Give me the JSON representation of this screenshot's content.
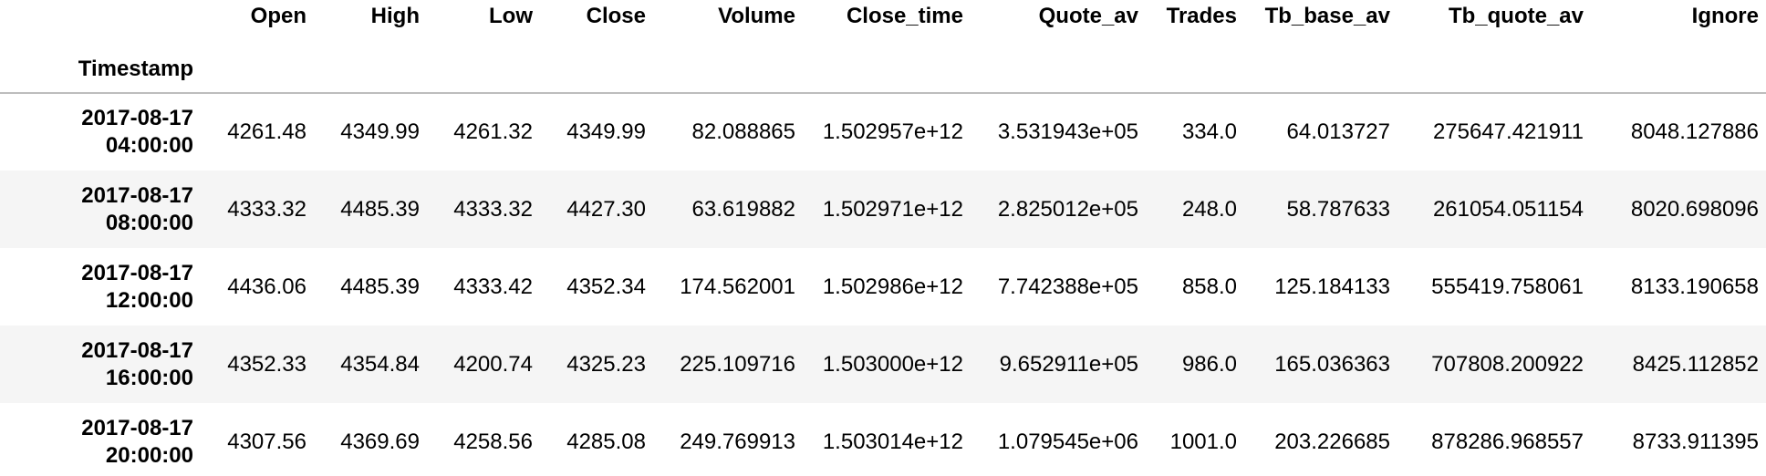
{
  "dataframe": {
    "index_name": "Timestamp",
    "columns": [
      "Open",
      "High",
      "Low",
      "Close",
      "Volume",
      "Close_time",
      "Quote_av",
      "Trades",
      "Tb_base_av",
      "Tb_quote_av",
      "Ignore"
    ],
    "rows": [
      {
        "ts_date": "2017-08-17",
        "ts_time": "04:00:00",
        "cells": [
          "4261.48",
          "4349.99",
          "4261.32",
          "4349.99",
          "82.088865",
          "1.502957e+12",
          "3.531943e+05",
          "334.0",
          "64.013727",
          "275647.421911",
          "8048.127886"
        ]
      },
      {
        "ts_date": "2017-08-17",
        "ts_time": "08:00:00",
        "cells": [
          "4333.32",
          "4485.39",
          "4333.32",
          "4427.30",
          "63.619882",
          "1.502971e+12",
          "2.825012e+05",
          "248.0",
          "58.787633",
          "261054.051154",
          "8020.698096"
        ]
      },
      {
        "ts_date": "2017-08-17",
        "ts_time": "12:00:00",
        "cells": [
          "4436.06",
          "4485.39",
          "4333.42",
          "4352.34",
          "174.562001",
          "1.502986e+12",
          "7.742388e+05",
          "858.0",
          "125.184133",
          "555419.758061",
          "8133.190658"
        ]
      },
      {
        "ts_date": "2017-08-17",
        "ts_time": "16:00:00",
        "cells": [
          "4352.33",
          "4354.84",
          "4200.74",
          "4325.23",
          "225.109716",
          "1.503000e+12",
          "9.652911e+05",
          "986.0",
          "165.036363",
          "707808.200922",
          "8425.112852"
        ]
      },
      {
        "ts_date": "2017-08-17",
        "ts_time": "20:00:00",
        "cells": [
          "4307.56",
          "4369.69",
          "4258.56",
          "4285.08",
          "249.769913",
          "1.503014e+12",
          "1.079545e+06",
          "1001.0",
          "203.226685",
          "878286.968557",
          "8733.911395"
        ]
      }
    ]
  }
}
